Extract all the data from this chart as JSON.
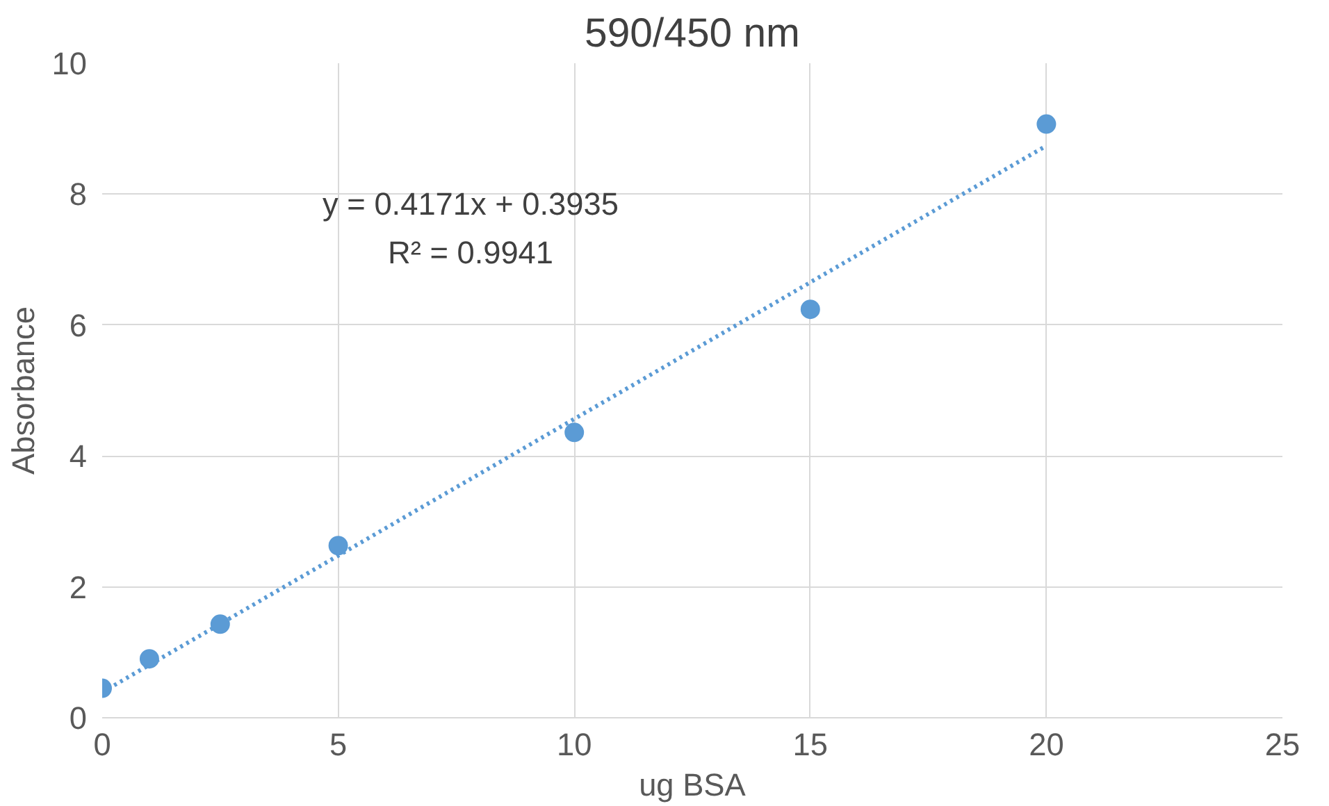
{
  "chart_data": {
    "type": "scatter",
    "title": "590/450 nm",
    "xlabel": "ug BSA",
    "ylabel": "Absorbance",
    "xlim": [
      0,
      25
    ],
    "xticks": [
      0,
      5,
      10,
      15,
      20,
      25
    ],
    "ylim": [
      0,
      10
    ],
    "yticks": [
      0,
      2,
      4,
      6,
      8,
      10
    ],
    "grid": true,
    "series": [
      {
        "color": "#5b9bd5",
        "marker": "circle",
        "x": [
          0,
          1,
          2.5,
          5,
          10,
          15,
          20
        ],
        "values": [
          0.45,
          0.9,
          1.43,
          2.63,
          4.36,
          6.24,
          9.07
        ]
      },
      {
        "type": "line",
        "color": "#5b9bd5",
        "marker": "none",
        "line_style": "dotted",
        "x": [
          0,
          20
        ],
        "values": [
          0.39,
          8.74
        ]
      }
    ],
    "annotations": [
      "y = 0.4171x + 0.3935",
      "R² = 0.9941"
    ]
  }
}
